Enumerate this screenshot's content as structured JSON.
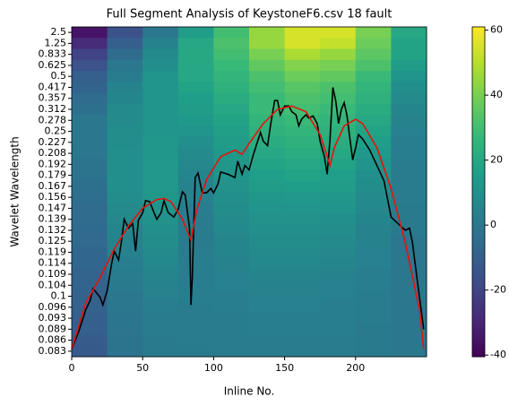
{
  "chart_data": {
    "type": "heatmap",
    "title": "Full Segment Analysis of KeystoneF6.csv 18 fault",
    "x_label": "Inline No.",
    "y_label": "Wavelet Wavelength",
    "xbins": [
      0,
      25,
      50,
      75,
      100,
      125,
      150,
      175,
      200,
      225,
      250
    ],
    "rows": [
      "2.5",
      "1.25",
      "0.833",
      "0.625",
      "0.5",
      "0.417",
      "0.357",
      "0.312",
      "0.278",
      "0.25",
      "0.227",
      "0.208",
      "0.192",
      "0.179",
      "0.167",
      "0.156",
      "0.147",
      "0.139",
      "0.132",
      "0.125",
      "0.119",
      "0.114",
      "0.109",
      "0.104",
      "0.1",
      "0.096",
      "0.093",
      "0.089",
      "0.086",
      "0.083"
    ],
    "z": [
      [
        -35,
        -15,
        0,
        15,
        30,
        45,
        55,
        55,
        40,
        20
      ],
      [
        -28,
        -10,
        5,
        20,
        32,
        45,
        55,
        52,
        38,
        18
      ],
      [
        -20,
        -5,
        8,
        20,
        30,
        40,
        48,
        45,
        35,
        18
      ],
      [
        -15,
        0,
        10,
        20,
        28,
        36,
        42,
        40,
        32,
        15
      ],
      [
        -10,
        2,
        12,
        20,
        26,
        32,
        38,
        36,
        28,
        12
      ],
      [
        -8,
        5,
        12,
        18,
        24,
        30,
        34,
        32,
        26,
        10
      ],
      [
        -5,
        6,
        12,
        16,
        22,
        28,
        32,
        30,
        24,
        8
      ],
      [
        -3,
        8,
        12,
        15,
        20,
        28,
        30,
        28,
        22,
        6
      ],
      [
        0,
        8,
        12,
        14,
        18,
        26,
        28,
        26,
        20,
        5
      ],
      [
        0,
        9,
        12,
        12,
        17,
        24,
        26,
        24,
        18,
        4
      ],
      [
        0,
        9,
        13,
        10,
        15,
        22,
        24,
        22,
        16,
        3
      ],
      [
        0,
        10,
        13,
        8,
        14,
        20,
        22,
        20,
        14,
        3
      ],
      [
        -2,
        10,
        14,
        7,
        13,
        18,
        20,
        18,
        12,
        2
      ],
      [
        -2,
        10,
        14,
        6,
        12,
        16,
        18,
        16,
        10,
        2
      ],
      [
        -3,
        10,
        14,
        5,
        11,
        15,
        16,
        15,
        9,
        2
      ],
      [
        -4,
        9,
        13,
        4,
        10,
        13,
        14,
        13,
        8,
        2
      ],
      [
        -5,
        8,
        12,
        3,
        9,
        12,
        12,
        12,
        7,
        1
      ],
      [
        -5,
        7,
        11,
        2,
        8,
        11,
        11,
        10,
        6,
        1
      ],
      [
        -6,
        6,
        10,
        2,
        7,
        10,
        10,
        9,
        5,
        1
      ],
      [
        -6,
        5,
        9,
        2,
        6,
        9,
        9,
        8,
        5,
        0
      ],
      [
        -7,
        4,
        8,
        3,
        6,
        8,
        8,
        7,
        4,
        0
      ],
      [
        -7,
        3,
        7,
        3,
        5,
        7,
        7,
        6,
        4,
        0
      ],
      [
        -8,
        2,
        6,
        3,
        4,
        6,
        6,
        5,
        3,
        0
      ],
      [
        -8,
        1,
        5,
        3,
        4,
        5,
        5,
        4,
        3,
        0
      ],
      [
        -9,
        0,
        4,
        3,
        3,
        4,
        4,
        4,
        2,
        0
      ],
      [
        -9,
        0,
        3,
        2,
        3,
        4,
        4,
        3,
        2,
        0
      ],
      [
        -10,
        -1,
        2,
        2,
        2,
        3,
        3,
        3,
        2,
        0
      ],
      [
        -10,
        -1,
        2,
        2,
        2,
        3,
        3,
        3,
        1,
        0
      ],
      [
        -11,
        -2,
        1,
        2,
        2,
        2,
        2,
        2,
        1,
        0
      ],
      [
        -12,
        -2,
        1,
        1,
        2,
        2,
        2,
        2,
        1,
        0
      ]
    ],
    "xlim": [
      0,
      250
    ],
    "xticks": [
      0,
      50,
      100,
      150,
      200
    ],
    "ylim": [
      29.5,
      -0.5
    ],
    "clim": [
      -40.5,
      61
    ],
    "cticks": [
      -40,
      -20,
      0,
      20,
      40,
      60
    ],
    "series": [
      {
        "color": "#000000",
        "x": [
          0,
          5,
          10,
          13,
          15,
          20,
          22,
          25,
          28,
          30,
          33,
          35,
          37,
          40,
          43,
          45,
          47,
          50,
          52,
          55,
          58,
          60,
          63,
          65,
          68,
          72,
          75,
          78,
          80,
          83,
          84,
          85,
          87,
          89,
          92,
          95,
          98,
          100,
          103,
          105,
          110,
          115,
          117,
          120,
          122,
          125,
          128,
          130,
          133,
          135,
          138,
          140,
          143,
          145,
          147,
          150,
          153,
          155,
          158,
          160,
          162,
          165,
          167,
          170,
          173,
          175,
          178,
          180,
          182,
          184,
          186,
          188,
          190,
          192,
          194,
          196,
          198,
          200,
          202,
          205,
          210,
          215,
          220,
          225,
          230,
          235,
          238,
          240,
          244,
          248
        ],
        "values": [
          28.8,
          27.2,
          25.2,
          24.4,
          23.3,
          24.1,
          24.8,
          23.5,
          21.1,
          19.9,
          20.7,
          19.1,
          17.0,
          17.8,
          17.4,
          19.9,
          17.1,
          16.4,
          15.3,
          15.4,
          16.4,
          17.0,
          16.4,
          15.3,
          16.4,
          16.8,
          16.1,
          14.5,
          14.8,
          17.8,
          24.8,
          22.3,
          13.2,
          12.8,
          14.6,
          14.6,
          14.2,
          14.6,
          13.8,
          12.7,
          12.9,
          13.2,
          11.7,
          12.9,
          12.1,
          12.5,
          11.1,
          10.3,
          9.1,
          9.9,
          10.3,
          8.5,
          6.2,
          6.2,
          7.5,
          6.7,
          6.7,
          7.2,
          7.5,
          8.5,
          7.9,
          7.5,
          7.8,
          7.6,
          8.3,
          9.9,
          11.3,
          12.9,
          9.7,
          5.0,
          6.2,
          8.3,
          7.0,
          6.4,
          7.6,
          9.7,
          11.6,
          10.5,
          9.3,
          9.7,
          10.7,
          12.1,
          13.5,
          16.8,
          17.4,
          18.0,
          17.8,
          19.1,
          23.1,
          27.0
        ]
      },
      {
        "color": "#e8120c",
        "x": [
          0,
          10,
          20,
          30,
          40,
          50,
          60,
          65,
          70,
          78,
          84,
          88,
          95,
          105,
          115,
          120,
          125,
          135,
          145,
          155,
          165,
          175,
          182,
          185,
          192,
          200,
          205,
          215,
          225,
          235,
          245,
          248
        ],
        "values": [
          28.8,
          24.6,
          22.3,
          19.7,
          17.6,
          16.0,
          15.2,
          15.1,
          15.4,
          17.0,
          18.9,
          16.2,
          13.4,
          11.3,
          10.7,
          11.1,
          10.1,
          8.3,
          7.0,
          6.7,
          7.2,
          9.3,
          12.1,
          10.5,
          8.5,
          7.9,
          8.3,
          10.5,
          14.2,
          19.1,
          25.2,
          28.8
        ]
      }
    ]
  }
}
